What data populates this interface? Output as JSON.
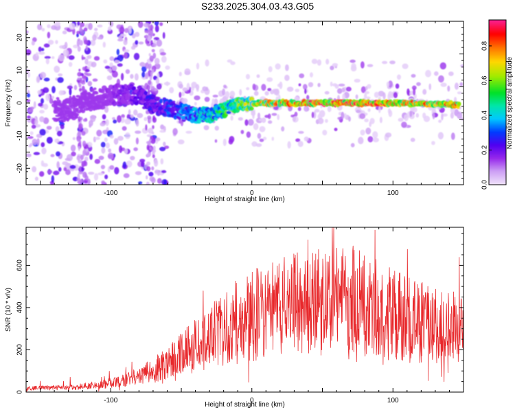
{
  "title": "S233.2025.304.03.43.G05",
  "chart_data": [
    {
      "type": "heatmap",
      "name": "spectrogram",
      "xlabel": "Height of straight line (km)",
      "ylabel": "Frequency (Hz)",
      "xlim": [
        -160,
        150
      ],
      "ylim": [
        -25,
        25
      ],
      "xticks": [
        -100,
        0,
        100
      ],
      "yticks": [
        -20,
        -10,
        0,
        10,
        20
      ],
      "colorbar": {
        "label": "Normalized spectral amplitude",
        "range": [
          0,
          0.95
        ],
        "ticks": [
          0.0,
          0.2,
          0.4,
          0.6,
          0.8
        ]
      },
      "ridge": [
        [
          -135,
          -2.0
        ],
        [
          -125,
          -1.5
        ],
        [
          -115,
          1.0
        ],
        [
          -100,
          2.0
        ],
        [
          -90,
          3.0
        ],
        [
          -80,
          2.0
        ],
        [
          -70,
          -0.5
        ],
        [
          -60,
          -1.5
        ],
        [
          -50,
          -2.5
        ],
        [
          -40,
          -4.0
        ],
        [
          -30,
          -3.5
        ],
        [
          -20,
          -2.0
        ],
        [
          -10,
          -0.5
        ],
        [
          0,
          0.0
        ],
        [
          50,
          0.0
        ],
        [
          100,
          0.0
        ],
        [
          145,
          -0.5
        ]
      ],
      "trend": [
        [
          -160,
          0.05
        ],
        [
          -130,
          0.1
        ],
        [
          -100,
          0.15
        ],
        [
          -80,
          0.22
        ],
        [
          -60,
          0.3
        ],
        [
          -40,
          0.4
        ],
        [
          -20,
          0.55
        ],
        [
          0,
          0.7
        ],
        [
          20,
          0.82
        ],
        [
          50,
          0.9
        ],
        [
          80,
          0.88
        ],
        [
          110,
          0.85
        ],
        [
          150,
          0.82
        ]
      ]
    },
    {
      "type": "line",
      "name": "snr",
      "xlabel": "Height of straight line (km)",
      "ylabel": "SNR (10 * v/v)",
      "xlim": [
        -160,
        150
      ],
      "ylim": [
        0,
        780
      ],
      "xticks": [
        -100,
        0,
        100
      ],
      "yticks": [
        0,
        200,
        400,
        600
      ],
      "color": "#e8282b",
      "envelope": [
        [
          -160,
          20
        ],
        [
          -130,
          25
        ],
        [
          -110,
          35
        ],
        [
          -90,
          60
        ],
        [
          -80,
          90
        ],
        [
          -70,
          120
        ],
        [
          -60,
          160
        ],
        [
          -50,
          200
        ],
        [
          -40,
          250
        ],
        [
          -30,
          300
        ],
        [
          -20,
          350
        ],
        [
          -10,
          380
        ],
        [
          0,
          410
        ],
        [
          10,
          440
        ],
        [
          20,
          460
        ],
        [
          30,
          470
        ],
        [
          40,
          480
        ],
        [
          50,
          490
        ],
        [
          60,
          500
        ],
        [
          70,
          500
        ],
        [
          80,
          480
        ],
        [
          90,
          450
        ],
        [
          100,
          420
        ],
        [
          110,
          400
        ],
        [
          120,
          380
        ],
        [
          130,
          360
        ],
        [
          140,
          350
        ],
        [
          150,
          340
        ]
      ]
    }
  ]
}
